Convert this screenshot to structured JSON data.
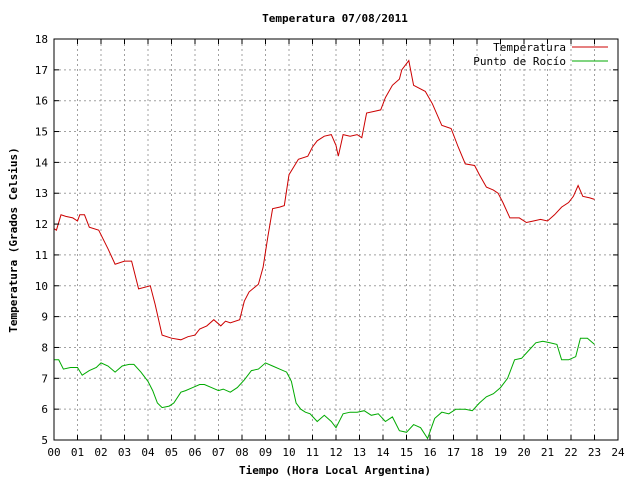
{
  "chart_data": {
    "type": "line",
    "title": "Temperatura 07/08/2011",
    "xlabel": "Tiempo (Hora Local Argentina)",
    "ylabel": "Temperatura (Grados Celsius)",
    "xlim": [
      0,
      24
    ],
    "ylim": [
      5,
      18
    ],
    "x_ticks": [
      "00",
      "01",
      "02",
      "03",
      "04",
      "05",
      "06",
      "07",
      "08",
      "09",
      "10",
      "11",
      "12",
      "13",
      "14",
      "15",
      "16",
      "17",
      "18",
      "19",
      "20",
      "21",
      "22",
      "23",
      "24"
    ],
    "y_ticks": [
      "5",
      "6",
      "7",
      "8",
      "9",
      "10",
      "11",
      "12",
      "13",
      "14",
      "15",
      "16",
      "17",
      "18"
    ],
    "grid": true,
    "legend_position": "top-right",
    "series": [
      {
        "name": "Temperatura",
        "color": "#cc0000",
        "points": [
          [
            0.0,
            11.85
          ],
          [
            0.1,
            11.8
          ],
          [
            0.3,
            12.3
          ],
          [
            0.5,
            12.25
          ],
          [
            0.8,
            12.2
          ],
          [
            1.0,
            12.1
          ],
          [
            1.1,
            12.3
          ],
          [
            1.3,
            12.3
          ],
          [
            1.5,
            11.9
          ],
          [
            1.9,
            11.8
          ],
          [
            2.3,
            11.2
          ],
          [
            2.6,
            10.7
          ],
          [
            3.0,
            10.8
          ],
          [
            3.3,
            10.8
          ],
          [
            3.6,
            9.9
          ],
          [
            4.1,
            10.0
          ],
          [
            4.3,
            9.4
          ],
          [
            4.6,
            8.4
          ],
          [
            5.0,
            8.3
          ],
          [
            5.4,
            8.25
          ],
          [
            5.7,
            8.35
          ],
          [
            6.0,
            8.4
          ],
          [
            6.2,
            8.6
          ],
          [
            6.5,
            8.7
          ],
          [
            6.8,
            8.9
          ],
          [
            7.1,
            8.7
          ],
          [
            7.3,
            8.85
          ],
          [
            7.5,
            8.8
          ],
          [
            7.9,
            8.9
          ],
          [
            8.1,
            9.5
          ],
          [
            8.3,
            9.8
          ],
          [
            8.7,
            10.05
          ],
          [
            8.9,
            10.6
          ],
          [
            9.1,
            11.6
          ],
          [
            9.3,
            12.5
          ],
          [
            9.6,
            12.55
          ],
          [
            9.8,
            12.6
          ],
          [
            10.0,
            13.6
          ],
          [
            10.2,
            13.85
          ],
          [
            10.4,
            14.1
          ],
          [
            10.8,
            14.2
          ],
          [
            11.0,
            14.5
          ],
          [
            11.2,
            14.7
          ],
          [
            11.5,
            14.85
          ],
          [
            11.8,
            14.9
          ],
          [
            12.0,
            14.55
          ],
          [
            12.1,
            14.2
          ],
          [
            12.3,
            14.9
          ],
          [
            12.6,
            14.85
          ],
          [
            12.9,
            14.9
          ],
          [
            13.1,
            14.8
          ],
          [
            13.3,
            15.6
          ],
          [
            13.6,
            15.65
          ],
          [
            13.9,
            15.7
          ],
          [
            14.1,
            16.1
          ],
          [
            14.4,
            16.5
          ],
          [
            14.7,
            16.7
          ],
          [
            14.8,
            17.0
          ],
          [
            15.1,
            17.3
          ],
          [
            15.3,
            16.5
          ],
          [
            15.8,
            16.3
          ],
          [
            16.1,
            15.9
          ],
          [
            16.5,
            15.2
          ],
          [
            16.9,
            15.1
          ],
          [
            17.2,
            14.5
          ],
          [
            17.5,
            13.95
          ],
          [
            17.9,
            13.9
          ],
          [
            18.1,
            13.6
          ],
          [
            18.4,
            13.2
          ],
          [
            18.7,
            13.1
          ],
          [
            18.9,
            13.0
          ],
          [
            19.1,
            12.7
          ],
          [
            19.4,
            12.2
          ],
          [
            19.8,
            12.2
          ],
          [
            20.1,
            12.05
          ],
          [
            20.4,
            12.1
          ],
          [
            20.7,
            12.15
          ],
          [
            21.0,
            12.1
          ],
          [
            21.3,
            12.3
          ],
          [
            21.6,
            12.55
          ],
          [
            21.9,
            12.7
          ],
          [
            22.1,
            12.9
          ],
          [
            22.3,
            13.25
          ],
          [
            22.5,
            12.9
          ],
          [
            22.8,
            12.85
          ],
          [
            23.0,
            12.8
          ]
        ]
      },
      {
        "name": "Punto de Rocío",
        "color": "#00aa00",
        "points": [
          [
            0.0,
            7.6
          ],
          [
            0.2,
            7.6
          ],
          [
            0.4,
            7.3
          ],
          [
            0.7,
            7.35
          ],
          [
            1.0,
            7.35
          ],
          [
            1.2,
            7.1
          ],
          [
            1.5,
            7.25
          ],
          [
            1.8,
            7.35
          ],
          [
            2.0,
            7.5
          ],
          [
            2.3,
            7.4
          ],
          [
            2.6,
            7.2
          ],
          [
            2.9,
            7.4
          ],
          [
            3.2,
            7.45
          ],
          [
            3.4,
            7.45
          ],
          [
            3.7,
            7.2
          ],
          [
            4.0,
            6.9
          ],
          [
            4.2,
            6.6
          ],
          [
            4.4,
            6.2
          ],
          [
            4.6,
            6.05
          ],
          [
            4.9,
            6.1
          ],
          [
            5.1,
            6.2
          ],
          [
            5.4,
            6.55
          ],
          [
            5.6,
            6.6
          ],
          [
            5.9,
            6.7
          ],
          [
            6.2,
            6.8
          ],
          [
            6.4,
            6.8
          ],
          [
            6.7,
            6.7
          ],
          [
            7.0,
            6.6
          ],
          [
            7.2,
            6.65
          ],
          [
            7.5,
            6.55
          ],
          [
            7.8,
            6.7
          ],
          [
            8.1,
            6.95
          ],
          [
            8.4,
            7.25
          ],
          [
            8.7,
            7.3
          ],
          [
            9.0,
            7.5
          ],
          [
            9.3,
            7.4
          ],
          [
            9.6,
            7.3
          ],
          [
            9.9,
            7.2
          ],
          [
            10.1,
            6.9
          ],
          [
            10.3,
            6.2
          ],
          [
            10.5,
            6.0
          ],
          [
            10.7,
            5.9
          ],
          [
            10.9,
            5.85
          ],
          [
            11.2,
            5.6
          ],
          [
            11.5,
            5.8
          ],
          [
            11.8,
            5.6
          ],
          [
            12.0,
            5.4
          ],
          [
            12.3,
            5.85
          ],
          [
            12.6,
            5.9
          ],
          [
            12.9,
            5.9
          ],
          [
            13.2,
            5.95
          ],
          [
            13.5,
            5.8
          ],
          [
            13.8,
            5.85
          ],
          [
            14.1,
            5.6
          ],
          [
            14.4,
            5.75
          ],
          [
            14.7,
            5.3
          ],
          [
            15.0,
            5.25
          ],
          [
            15.3,
            5.5
          ],
          [
            15.6,
            5.4
          ],
          [
            15.9,
            5.05
          ],
          [
            16.2,
            5.7
          ],
          [
            16.5,
            5.9
          ],
          [
            16.8,
            5.85
          ],
          [
            17.1,
            6.0
          ],
          [
            17.5,
            6.0
          ],
          [
            17.8,
            5.95
          ],
          [
            18.1,
            6.2
          ],
          [
            18.4,
            6.4
          ],
          [
            18.7,
            6.5
          ],
          [
            19.0,
            6.7
          ],
          [
            19.3,
            7.0
          ],
          [
            19.6,
            7.6
          ],
          [
            19.9,
            7.65
          ],
          [
            20.2,
            7.9
          ],
          [
            20.5,
            8.15
          ],
          [
            20.8,
            8.2
          ],
          [
            21.1,
            8.15
          ],
          [
            21.4,
            8.1
          ],
          [
            21.6,
            7.6
          ],
          [
            21.9,
            7.6
          ],
          [
            22.2,
            7.7
          ],
          [
            22.4,
            8.3
          ],
          [
            22.7,
            8.3
          ],
          [
            23.0,
            8.1
          ]
        ]
      }
    ]
  }
}
